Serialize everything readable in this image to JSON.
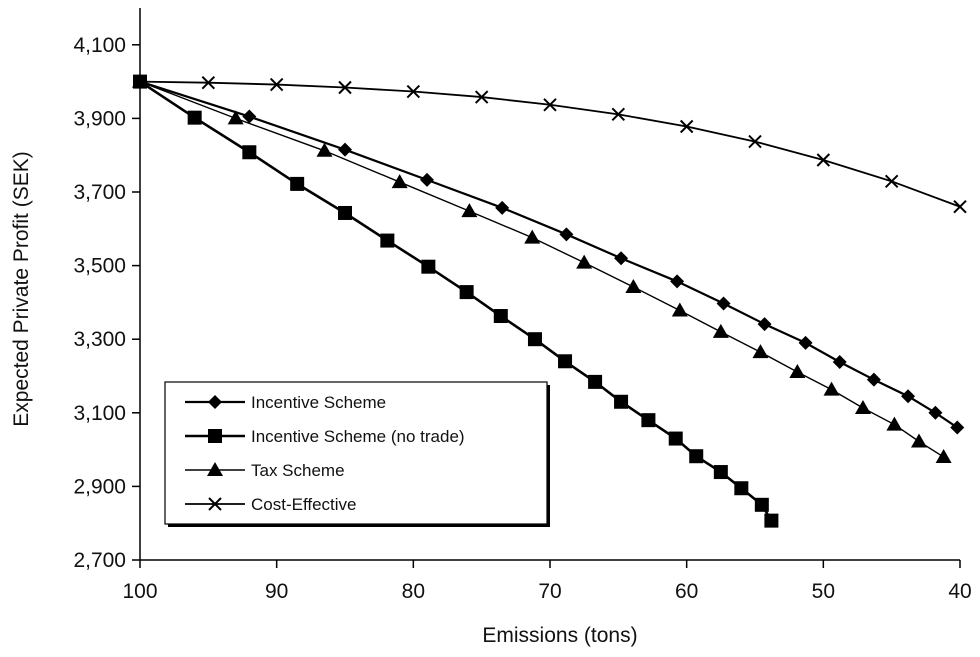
{
  "chart_data": {
    "type": "line",
    "xlabel": "Emissions (tons)",
    "ylabel": "Expected Private Profit (SEK)",
    "xlim": [
      100,
      40
    ],
    "ylim": [
      2700,
      4200
    ],
    "x_ticks": [
      100,
      90,
      80,
      70,
      60,
      50,
      40
    ],
    "x_tick_labels": [
      "100",
      "90",
      "80",
      "70",
      "60",
      "50",
      "40"
    ],
    "y_ticks": [
      2700,
      2900,
      3100,
      3300,
      3500,
      3700,
      3900,
      4100
    ],
    "y_tick_labels": [
      "2,700",
      "2,900",
      "3,100",
      "3,300",
      "3,500",
      "3,700",
      "3,900",
      "4,100"
    ],
    "grid": false,
    "legend_position": "bottom-left",
    "series": [
      {
        "name": "Incentive Scheme",
        "marker": "diamond",
        "color": "#000000",
        "x": [
          100,
          92,
          85,
          79,
          73.5,
          68.8,
          64.8,
          60.7,
          57.3,
          54.3,
          51.3,
          48.8,
          46.3,
          43.8,
          41.8,
          40.2
        ],
        "y": [
          4000,
          3905,
          3815,
          3733,
          3657,
          3585,
          3520,
          3457,
          3397,
          3341,
          3290,
          3238,
          3190,
          3145,
          3100,
          3060
        ]
      },
      {
        "name": "Incentive Scheme (no trade)",
        "marker": "square",
        "color": "#000000",
        "x": [
          100,
          96,
          92,
          88.5,
          85,
          81.9,
          78.9,
          76.1,
          73.6,
          71.1,
          68.9,
          66.7,
          64.8,
          62.8,
          60.8,
          59.3,
          57.5,
          56.0,
          54.5,
          53.8
        ],
        "y": [
          4000,
          3902,
          3808,
          3722,
          3643,
          3568,
          3497,
          3428,
          3363,
          3300,
          3240,
          3184,
          3130,
          3080,
          3030,
          2982,
          2939,
          2895,
          2850,
          2807
        ]
      },
      {
        "name": "Tax Scheme",
        "marker": "triangle",
        "color": "#000000",
        "x": [
          100,
          93,
          86.5,
          81,
          75.9,
          71.3,
          67.5,
          63.9,
          60.5,
          57.5,
          54.6,
          51.9,
          49.4,
          47.1,
          44.8,
          43.0,
          41.2
        ],
        "y": [
          4000,
          3900,
          3812,
          3727,
          3648,
          3576,
          3508,
          3442,
          3378,
          3320,
          3265,
          3211,
          3163,
          3113,
          3068,
          3022,
          2980
        ]
      },
      {
        "name": "Cost-Effective",
        "marker": "x",
        "color": "#000000",
        "x": [
          100,
          95,
          90,
          85,
          80,
          75,
          70,
          65,
          60,
          55,
          50,
          45,
          40
        ],
        "y": [
          4000,
          3997,
          3992,
          3984,
          3973,
          3958,
          3937,
          3911,
          3878,
          3837,
          3787,
          3729,
          3660
        ]
      }
    ]
  }
}
